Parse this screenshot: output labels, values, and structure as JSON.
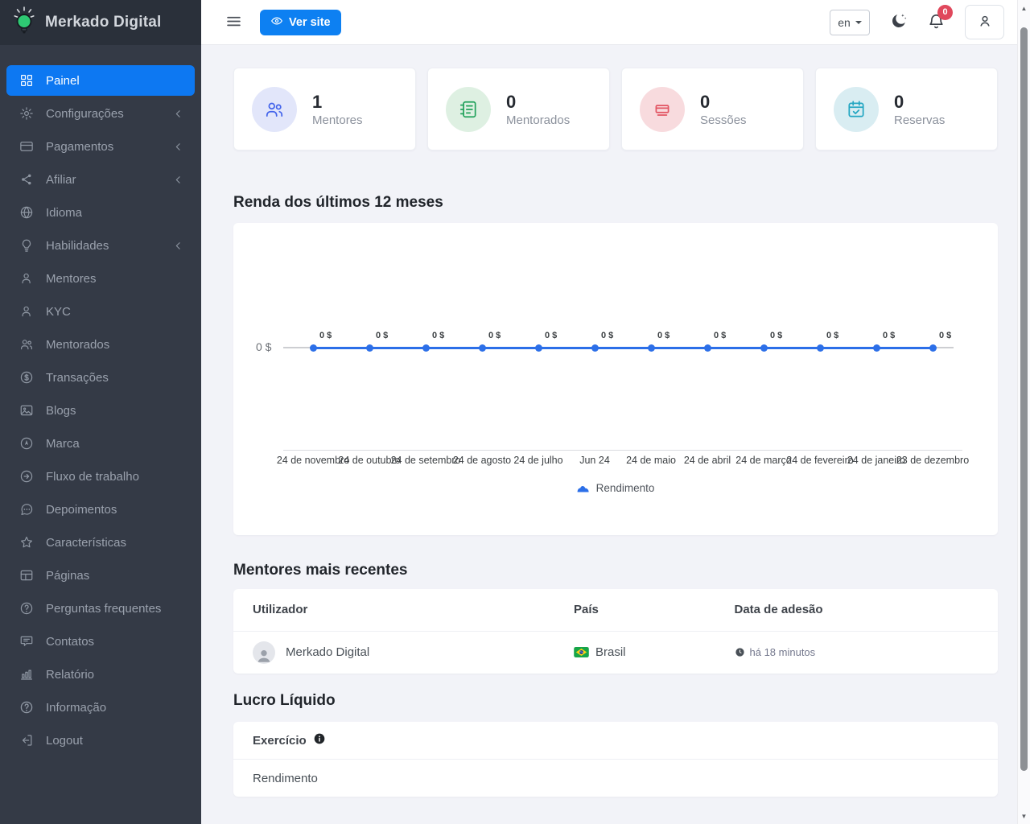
{
  "app": {
    "brand": "Merkado Digital"
  },
  "colors": {
    "primary": "#0d78f2",
    "sidebar_bg": "#343a46",
    "sidebar_header_bg": "#2a303a",
    "page_bg": "#f2f3f8",
    "danger_badge": "#e0485c",
    "chart_line": "#2c6fe8"
  },
  "topbar": {
    "view_site_label": "Ver site",
    "language": "en",
    "notification_count": "0"
  },
  "sidebar": {
    "items": [
      {
        "label": "Painel",
        "icon": "grid",
        "active": true,
        "has_children": false
      },
      {
        "label": "Configurações",
        "icon": "gear",
        "active": false,
        "has_children": true
      },
      {
        "label": "Pagamentos",
        "icon": "credit-card",
        "active": false,
        "has_children": true
      },
      {
        "label": "Afiliar",
        "icon": "share",
        "active": false,
        "has_children": true
      },
      {
        "label": "Idioma",
        "icon": "globe",
        "active": false,
        "has_children": false
      },
      {
        "label": "Habilidades",
        "icon": "lightbulb",
        "active": false,
        "has_children": true
      },
      {
        "label": "Mentores",
        "icon": "user",
        "active": false,
        "has_children": false
      },
      {
        "label": "KYC",
        "icon": "user",
        "active": false,
        "has_children": false
      },
      {
        "label": "Mentorados",
        "icon": "users",
        "active": false,
        "has_children": false
      },
      {
        "label": "Transações",
        "icon": "dollar-circle",
        "active": false,
        "has_children": false
      },
      {
        "label": "Blogs",
        "icon": "image",
        "active": false,
        "has_children": false
      },
      {
        "label": "Marca",
        "icon": "compass",
        "active": false,
        "has_children": false
      },
      {
        "label": "Fluxo de trabalho",
        "icon": "arrow-right-circle",
        "active": false,
        "has_children": false
      },
      {
        "label": "Depoimentos",
        "icon": "chat",
        "active": false,
        "has_children": false
      },
      {
        "label": "Características",
        "icon": "star",
        "active": false,
        "has_children": false
      },
      {
        "label": "Páginas",
        "icon": "layout",
        "active": false,
        "has_children": false
      },
      {
        "label": "Perguntas frequentes",
        "icon": "question-circle",
        "active": false,
        "has_children": false
      },
      {
        "label": "Contatos",
        "icon": "message",
        "active": false,
        "has_children": false
      },
      {
        "label": "Relatório",
        "icon": "bar-chart",
        "active": false,
        "has_children": false
      },
      {
        "label": "Informação",
        "icon": "help-circle",
        "active": false,
        "has_children": false
      },
      {
        "label": "Logout",
        "icon": "logout",
        "active": false,
        "has_children": false
      }
    ]
  },
  "stats": {
    "cards": [
      {
        "value": "1",
        "label": "Mentores",
        "icon": "users",
        "fg": "#4263eb",
        "bg": "#e2e6fa"
      },
      {
        "value": "0",
        "label": "Mentorados",
        "icon": "notebook",
        "fg": "#23a25c",
        "bg": "#def0e2"
      },
      {
        "value": "0",
        "label": "Sessões",
        "icon": "sessions",
        "fg": "#e25563",
        "bg": "#f8dbde"
      },
      {
        "value": "0",
        "label": "Reservas",
        "icon": "calendar-check",
        "fg": "#23a6c2",
        "bg": "#d9edf2"
      }
    ]
  },
  "sections": {
    "income_chart_title": "Renda dos últimos 12 meses",
    "recent_mentors_title": "Mentores mais recentes",
    "net_profit_title": "Lucro Líquido"
  },
  "chart_data": {
    "type": "line",
    "title": "Renda dos últimos 12 meses",
    "categories": [
      "24 de novembro",
      "24 de outubro",
      "24 de setembro",
      "24 de agosto",
      "24 de julho",
      "Jun 24",
      "24 de maio",
      "24 de abril",
      "24 de março",
      "24 de fevereiro",
      "24 de janeiro",
      "23 de dezembro"
    ],
    "series": [
      {
        "name": "Rendimento",
        "values": [
          0,
          0,
          0,
          0,
          0,
          0,
          0,
          0,
          0,
          0,
          0,
          0
        ]
      }
    ],
    "point_label_suffix": " $",
    "y_axis": {
      "tick_labels": [
        "0 $"
      ],
      "range": [
        0,
        1
      ]
    },
    "grid": false,
    "legend": {
      "position": "bottom",
      "entries": [
        "Rendimento"
      ]
    },
    "line_color": "#2c6fe8"
  },
  "mentors_table": {
    "columns": [
      "Utilizador",
      "País",
      "Data de adesão"
    ],
    "rows": [
      {
        "name": "Merkado Digital",
        "country": "Brasil",
        "country_flag": "brazil",
        "joined_ago": "há 18 minutos"
      }
    ]
  },
  "net_profit": {
    "column_header": "Exercício",
    "rows": [
      "Rendimento"
    ]
  }
}
